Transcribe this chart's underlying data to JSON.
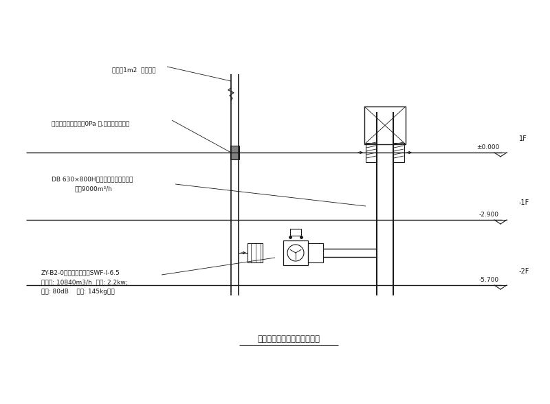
{
  "bg_color": "#ffffff",
  "line_color": "#1a1a1a",
  "fig_width": 8.0,
  "fig_height": 5.88,
  "title": "地下室楼梯间加压送风系统图",
  "label_1f": "1F",
  "label_neg1f": "-1F",
  "label_pm0": "±0.000",
  "label_neg2900": "-2.900",
  "label_neg2f": "-2F",
  "label_neg5700": "-5.700",
  "note1": "不小于1m2  的固定管",
  "note2": "当楼梯间余压值超过0Pa 时,开启旁通泄压阀",
  "note3": "DB 630×800H（常开式百叶送风口）",
  "note3b": "风量9000m³/h",
  "note4": "ZY-B2-0调流加压送风机SWF-I-6.5",
  "note4b": "送风量: 10840m3/h  功率: 2.2kw;",
  "note4c": "噪声: 80dB    重量: 145kg吊装"
}
